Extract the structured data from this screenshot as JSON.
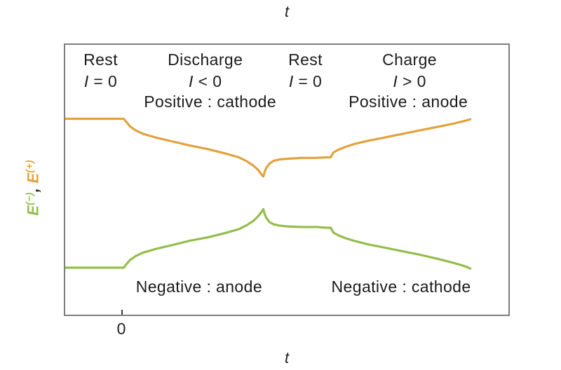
{
  "figure": {
    "top_axis_label": "t",
    "bottom_axis_label": "t"
  },
  "chart_data": {
    "type": "line",
    "title": "",
    "xlabel": "t",
    "ylabel": "E(−), E(+)",
    "ylabel_parts": {
      "neg_base": "E",
      "neg_sup": "(−)",
      "separator": ", ",
      "pos_base": "E",
      "pos_sup": "(+)"
    },
    "x_ticks": [
      {
        "label": "0",
        "frac": 0.129
      }
    ],
    "axes_note": "both axes in arbitrary units; x is time t, y is electrode potential",
    "colors": {
      "positive_electrode": "#e2a23c",
      "negative_electrode": "#94bd4a",
      "frame": "#7e7e7e",
      "text": "#1b1b1b"
    },
    "phases": [
      {
        "name": "Rest",
        "current_symbol": "I",
        "current_relation": " = 0"
      },
      {
        "name": "Discharge",
        "current_symbol": "I",
        "current_relation": " < 0"
      },
      {
        "name": "Rest",
        "current_symbol": "I",
        "current_relation": " = 0"
      },
      {
        "name": "Charge",
        "current_symbol": "I",
        "current_relation": " > 0"
      }
    ],
    "electrode_annotations": {
      "positive_discharge": "Positive : cathode",
      "positive_charge": "Positive : anode",
      "negative_discharge": "Negative : anode",
      "negative_charge": "Negative : cathode"
    },
    "series": [
      {
        "name": "E-positive",
        "color": "#e2a23c",
        "points": [
          [
            0.0,
            0.726
          ],
          [
            0.046,
            0.726
          ],
          [
            0.093,
            0.726
          ],
          [
            0.132,
            0.726
          ],
          [
            0.138,
            0.714
          ],
          [
            0.146,
            0.698
          ],
          [
            0.159,
            0.683
          ],
          [
            0.176,
            0.67
          ],
          [
            0.203,
            0.657
          ],
          [
            0.242,
            0.642
          ],
          [
            0.281,
            0.627
          ],
          [
            0.321,
            0.614
          ],
          [
            0.36,
            0.598
          ],
          [
            0.392,
            0.583
          ],
          [
            0.41,
            0.568
          ],
          [
            0.425,
            0.552
          ],
          [
            0.436,
            0.535
          ],
          [
            0.443,
            0.519
          ],
          [
            0.447,
            0.512
          ],
          [
            0.45,
            0.529
          ],
          [
            0.454,
            0.545
          ],
          [
            0.461,
            0.56
          ],
          [
            0.47,
            0.57
          ],
          [
            0.483,
            0.575
          ],
          [
            0.502,
            0.578
          ],
          [
            0.533,
            0.581
          ],
          [
            0.568,
            0.581
          ],
          [
            0.588,
            0.583
          ],
          [
            0.599,
            0.583
          ],
          [
            0.605,
            0.601
          ],
          [
            0.616,
            0.611
          ],
          [
            0.631,
            0.621
          ],
          [
            0.651,
            0.632
          ],
          [
            0.682,
            0.644
          ],
          [
            0.722,
            0.657
          ],
          [
            0.761,
            0.67
          ],
          [
            0.8,
            0.683
          ],
          [
            0.84,
            0.696
          ],
          [
            0.876,
            0.708
          ],
          [
            0.903,
            0.719
          ],
          [
            0.914,
            0.724
          ]
        ]
      },
      {
        "name": "E-negative",
        "color": "#94bd4a",
        "points": [
          [
            0.0,
            0.174
          ],
          [
            0.046,
            0.174
          ],
          [
            0.093,
            0.174
          ],
          [
            0.132,
            0.174
          ],
          [
            0.138,
            0.187
          ],
          [
            0.146,
            0.202
          ],
          [
            0.159,
            0.217
          ],
          [
            0.176,
            0.23
          ],
          [
            0.203,
            0.243
          ],
          [
            0.242,
            0.258
          ],
          [
            0.281,
            0.274
          ],
          [
            0.321,
            0.286
          ],
          [
            0.36,
            0.302
          ],
          [
            0.392,
            0.317
          ],
          [
            0.41,
            0.332
          ],
          [
            0.425,
            0.348
          ],
          [
            0.436,
            0.366
          ],
          [
            0.443,
            0.381
          ],
          [
            0.447,
            0.391
          ],
          [
            0.45,
            0.373
          ],
          [
            0.454,
            0.358
          ],
          [
            0.461,
            0.343
          ],
          [
            0.47,
            0.335
          ],
          [
            0.483,
            0.33
          ],
          [
            0.502,
            0.327
          ],
          [
            0.533,
            0.325
          ],
          [
            0.568,
            0.325
          ],
          [
            0.588,
            0.322
          ],
          [
            0.599,
            0.322
          ],
          [
            0.605,
            0.304
          ],
          [
            0.616,
            0.294
          ],
          [
            0.631,
            0.284
          ],
          [
            0.651,
            0.274
          ],
          [
            0.682,
            0.261
          ],
          [
            0.722,
            0.248
          ],
          [
            0.761,
            0.235
          ],
          [
            0.8,
            0.222
          ],
          [
            0.84,
            0.207
          ],
          [
            0.876,
            0.192
          ],
          [
            0.903,
            0.179
          ],
          [
            0.914,
            0.171
          ]
        ]
      }
    ]
  }
}
